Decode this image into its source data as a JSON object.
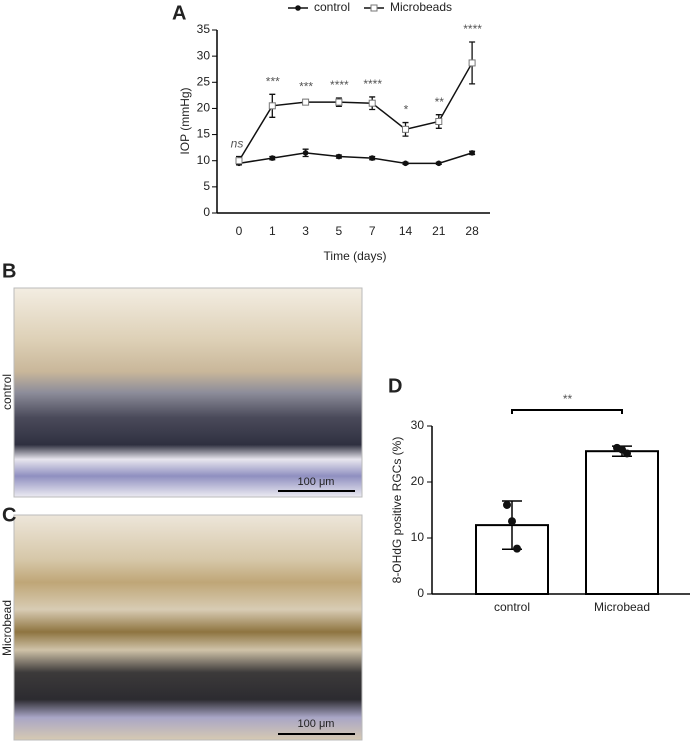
{
  "chart_data": [
    {
      "type": "line",
      "title": "A",
      "xlabel": "Time (days)",
      "ylabel": "IOP (mmHg)",
      "categories": [
        "0",
        "1",
        "3",
        "5",
        "7",
        "14",
        "21",
        "28"
      ],
      "series": [
        {
          "name": "control",
          "color": "#111111",
          "marker": "filled",
          "values": [
            9.5,
            10.5,
            11.5,
            10.8,
            10.5,
            9.5,
            9.5,
            11.5
          ],
          "errors": [
            0.3,
            0.3,
            0.7,
            0.3,
            0.3,
            0.2,
            0.2,
            0.3
          ]
        },
        {
          "name": "Microbeads",
          "color": "#777777",
          "marker": "open",
          "values": [
            10,
            20.5,
            21.2,
            21.2,
            21,
            16,
            17.5,
            28.7
          ],
          "errors": [
            0.8,
            2.2,
            0.5,
            0.8,
            1.2,
            1.3,
            1.3,
            4
          ]
        }
      ],
      "annotations": [
        "ns",
        "***",
        "***",
        "****",
        "****",
        "*",
        "**",
        "****"
      ],
      "ylim": [
        0,
        35
      ],
      "yticks": [
        0,
        5,
        10,
        15,
        20,
        25,
        30,
        35
      ],
      "legend": "top"
    },
    {
      "type": "bar",
      "title": "D",
      "ylabel": "8-OHdG positive RGCs (%)",
      "categories": [
        "control",
        "Microbead"
      ],
      "values": [
        12.3,
        25.5
      ],
      "errors": [
        4.3,
        0.9
      ],
      "points": [
        [
          15.9,
          13.0,
          8.1
        ],
        [
          26.1,
          25.8,
          25.1
        ]
      ],
      "color": "#ffffff",
      "annotations": [
        "**"
      ],
      "ylim": [
        0,
        30
      ],
      "yticks": [
        0,
        10,
        20,
        30
      ]
    }
  ],
  "panels": [
    {
      "label": "B",
      "side_label": "control",
      "scale_bar": "100 μm"
    },
    {
      "label": "C",
      "side_label": "Microbead",
      "scale_bar": "100 μm"
    }
  ]
}
